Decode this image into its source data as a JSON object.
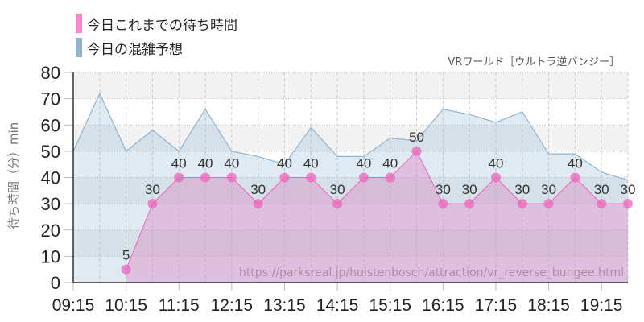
{
  "legend": {
    "items": [
      {
        "label": "今日これまでの待ち時間",
        "color": "#ff88cc"
      },
      {
        "label": "今日の混雑予想",
        "color": "#90b4d2"
      }
    ]
  },
  "subtitle": "VRワールド［ウルトラ逆バンジー］",
  "watermark_url": "https://parksreal.jp/huistenbosch/attraction/vr_reverse_bungee.html",
  "chart_data": {
    "type": "area",
    "title": "",
    "xlabel": "",
    "ylabel": "待ち時間（分）min",
    "ylim": [
      0,
      80
    ],
    "yticks": [
      0,
      10,
      20,
      30,
      40,
      50,
      60,
      70,
      80
    ],
    "x_tick_labels": [
      "09:15",
      "10:15",
      "11:15",
      "12:15",
      "13:15",
      "14:15",
      "15:15",
      "16:15",
      "17:15",
      "18:15",
      "19:15"
    ],
    "grid": true,
    "legend_position": "top-left",
    "series": [
      {
        "name": "今日の混雑予想",
        "color": "#90b4d2",
        "x": [
          "09:15",
          "09:45",
          "10:15",
          "10:45",
          "11:15",
          "11:45",
          "12:15",
          "12:45",
          "13:15",
          "13:45",
          "14:15",
          "14:45",
          "15:15",
          "15:45",
          "16:15",
          "16:45",
          "17:15",
          "17:45",
          "18:15",
          "18:45",
          "19:15",
          "19:45"
        ],
        "values": [
          50,
          72,
          50,
          58,
          50,
          66,
          50,
          48,
          45,
          59,
          48,
          48,
          55,
          54,
          66,
          64,
          61,
          65,
          49,
          49,
          42,
          39
        ]
      },
      {
        "name": "今日これまでの待ち時間",
        "color": "#ee66bb",
        "x": [
          "10:15",
          "10:45",
          "11:15",
          "11:45",
          "12:15",
          "12:45",
          "13:15",
          "13:45",
          "14:15",
          "14:45",
          "15:15",
          "15:45",
          "16:15",
          "16:45",
          "17:15",
          "17:45",
          "18:15",
          "18:45",
          "19:15",
          "19:45"
        ],
        "values": [
          5,
          30,
          40,
          40,
          40,
          30,
          40,
          40,
          30,
          40,
          40,
          50,
          30,
          30,
          40,
          30,
          30,
          40,
          30,
          30
        ]
      }
    ]
  }
}
